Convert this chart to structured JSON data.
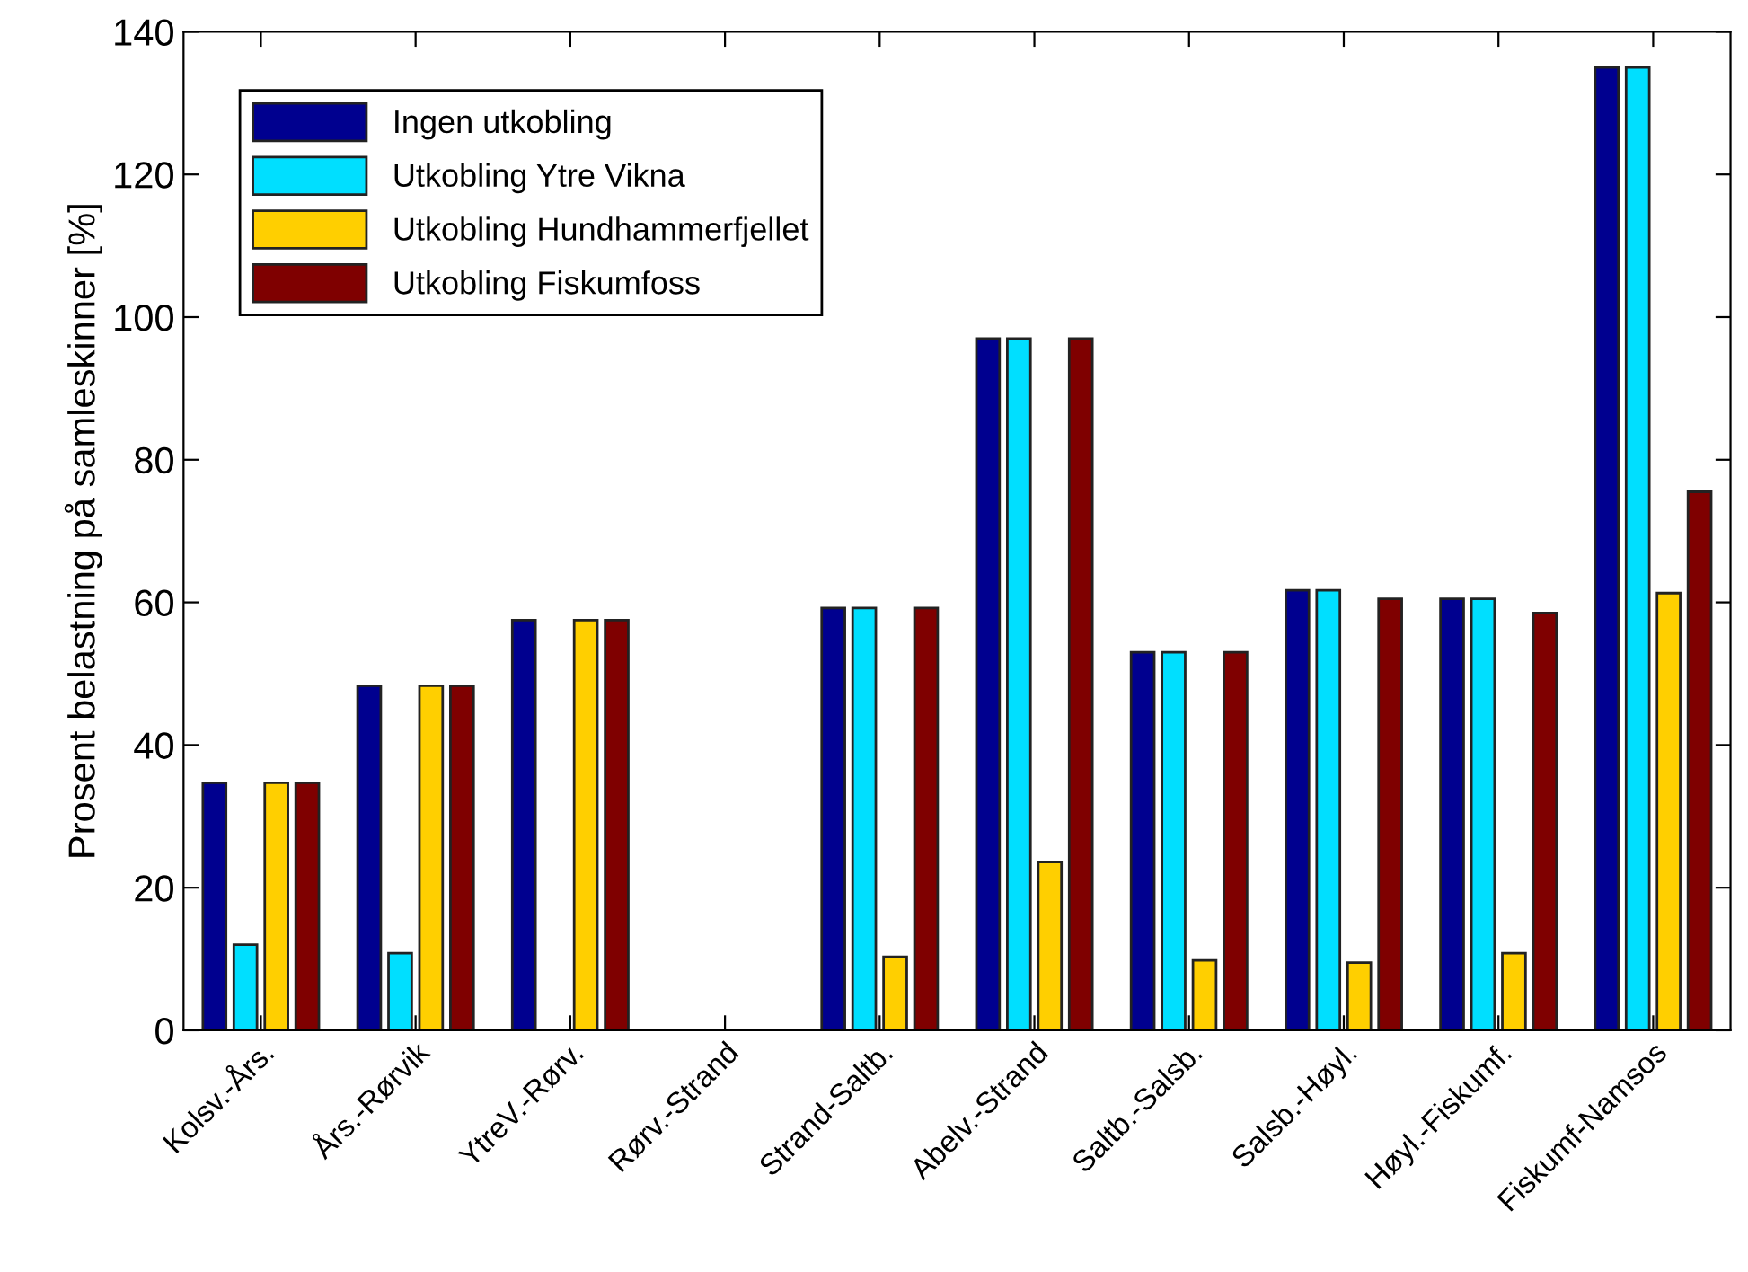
{
  "chart_data": {
    "type": "bar",
    "ylabel": "Prosent belastning på samleskinner [%]",
    "categories": [
      "Kolsv.-Års.",
      "Års.-Rørvik",
      "YtreV.-Rørv.",
      "Rørv.-Strand",
      "Strand-Saltb.",
      "Abelv.-Strand",
      "Saltb.-Salsb.",
      "Salsb.-Høyl.",
      "Høyl.-Fiskumf.",
      "Fiskumf-Namsos"
    ],
    "series": [
      {
        "name": "Ingen utkobling",
        "color": "#00008f",
        "values": [
          34.7,
          48.3,
          57.5,
          null,
          59.2,
          97,
          53,
          61.7,
          60.5,
          135
        ]
      },
      {
        "name": "Utkobling Ytre Vikna",
        "color": "#00dfff",
        "values": [
          12,
          10.8,
          null,
          null,
          59.2,
          97,
          53,
          61.7,
          60.5,
          135
        ]
      },
      {
        "name": "Utkobling Hundhammerfjellet",
        "color": "#ffcf00",
        "values": [
          34.7,
          48.3,
          57.5,
          null,
          10.3,
          23.6,
          9.8,
          9.5,
          10.8,
          61.3
        ]
      },
      {
        "name": "Utkobling Fiskumfoss",
        "color": "#7f0000",
        "values": [
          34.7,
          48.3,
          57.5,
          null,
          59.2,
          97,
          53,
          60.5,
          58.5,
          75.5
        ]
      }
    ],
    "ylim": [
      0,
      140
    ],
    "yticks": [
      0,
      20,
      40,
      60,
      80,
      100,
      120,
      140
    ],
    "grid": false,
    "legend": "top left"
  }
}
